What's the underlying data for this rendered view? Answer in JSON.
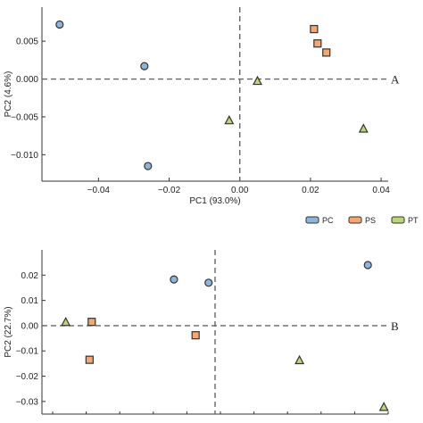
{
  "colors": {
    "PC": "#8fb4d8",
    "PS": "#f3a772",
    "PT": "#bcd57a",
    "edge": "#333333"
  },
  "legend": [
    {
      "label": "PC",
      "color": "#8fb4d8"
    },
    {
      "label": "PS",
      "color": "#f3a772"
    },
    {
      "label": "PT",
      "color": "#bcd57a"
    }
  ],
  "chart_data": [
    {
      "type": "scatter",
      "panel_label": "A",
      "xlabel": "PC1 (93.0%)",
      "ylabel": "PC2 (4.6%)",
      "xlim": [
        -0.056,
        0.042
      ],
      "ylim": [
        -0.0135,
        0.0095
      ],
      "xticks": [
        -0.04,
        -0.02,
        0.0,
        0.02,
        0.04
      ],
      "xtick_labels": [
        "−0.04",
        "−0.02",
        "0.00",
        "0.02",
        "0.04"
      ],
      "yticks": [
        0.005,
        0.0,
        -0.005,
        -0.01
      ],
      "ytick_labels": [
        "0.005",
        "0.000",
        "−0.005",
        "−0.010"
      ],
      "reference_lines": {
        "x": 0.0,
        "y": 0.0
      },
      "series": [
        {
          "name": "PC",
          "marker": "circle",
          "x": [
            -0.051,
            -0.027,
            -0.026
          ],
          "y": [
            0.0072,
            0.0017,
            -0.0115
          ]
        },
        {
          "name": "PS",
          "marker": "square",
          "x": [
            0.021,
            0.022,
            0.0245
          ],
          "y": [
            0.0066,
            0.0047,
            0.0035
          ]
        },
        {
          "name": "PT",
          "marker": "triangle",
          "x": [
            0.005,
            -0.003,
            0.035
          ],
          "y": [
            -0.0003,
            -0.0055,
            -0.0066
          ]
        }
      ]
    },
    {
      "type": "scatter",
      "panel_label": "B",
      "xlabel": "",
      "ylabel": "PC2 (22.7%)",
      "xlim": [
        -0.04,
        0.04
      ],
      "ylim": [
        -0.035,
        0.03
      ],
      "xticks": [],
      "xtick_labels": [],
      "yticks": [
        0.02,
        0.01,
        0.0,
        -0.01,
        -0.02,
        -0.03
      ],
      "ytick_labels": [
        "0.02",
        "0.01",
        "0.00",
        "−0.01",
        "−0.02",
        "−0.03"
      ],
      "reference_lines": {
        "x": 0.0,
        "y": 0.0
      },
      "series": [
        {
          "name": "PC",
          "marker": "circle",
          "x": [
            -0.0095,
            -0.0015,
            0.0353
          ],
          "y": [
            0.0183,
            0.017,
            0.024
          ]
        },
        {
          "name": "PS",
          "marker": "square",
          "x": [
            -0.029,
            -0.0285,
            -0.0045
          ],
          "y": [
            -0.0135,
            0.0015,
            -0.0038
          ]
        },
        {
          "name": "PT",
          "marker": "triangle",
          "x": [
            -0.0345,
            0.0195,
            0.039
          ],
          "y": [
            0.0013,
            -0.0138,
            -0.0323
          ]
        }
      ]
    }
  ]
}
